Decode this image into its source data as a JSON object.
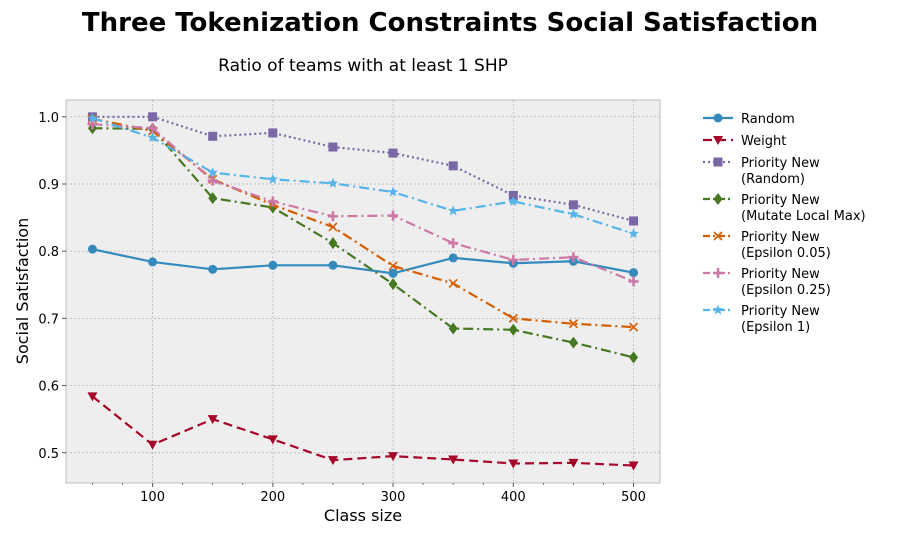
{
  "chart_data": {
    "type": "line",
    "title": "Three Tokenization Constraints Social Satisfaction",
    "subtitle": "Ratio of teams with at least 1 SHP",
    "xlabel": "Class size",
    "ylabel": "Social Satisfaction",
    "xlim": [
      28,
      522
    ],
    "ylim": [
      0.455,
      1.025
    ],
    "xticks": [
      100,
      200,
      300,
      400,
      500
    ],
    "yticks": [
      0.5,
      0.6,
      0.7,
      0.8,
      0.9,
      1.0
    ],
    "ytick_labels": [
      "0.5",
      "0.6",
      "0.7",
      "0.8",
      "0.9",
      "1.0"
    ],
    "grid": true,
    "legend_position": "outside right",
    "x": [
      50,
      100,
      150,
      200,
      250,
      300,
      350,
      400,
      450,
      500
    ],
    "series": [
      {
        "name": "Random",
        "color": "#348abd",
        "dash": "",
        "marker": "circle",
        "values": [
          0.803,
          0.784,
          0.773,
          0.779,
          0.779,
          0.767,
          0.79,
          0.782,
          0.785,
          0.768
        ]
      },
      {
        "name": "Weight",
        "color": "#a60628",
        "dash": "9 5",
        "marker": "triangle-down",
        "values": [
          0.584,
          0.512,
          0.55,
          0.52,
          0.489,
          0.495,
          0.49,
          0.484,
          0.485,
          0.481
        ]
      },
      {
        "name": "Priority New\n(Random)",
        "color": "#7a68a6",
        "dash": "2 3",
        "marker": "square",
        "values": [
          1.0,
          1.0,
          0.971,
          0.976,
          0.955,
          0.946,
          0.927,
          0.883,
          0.869,
          0.845
        ]
      },
      {
        "name": "Priority New\n(Mutate Local Max)",
        "color": "#467821",
        "dash": "10 4 2 4",
        "marker": "diamond",
        "values": [
          0.983,
          0.982,
          0.879,
          0.865,
          0.812,
          0.751,
          0.685,
          0.683,
          0.664,
          0.642
        ]
      },
      {
        "name": "Priority New\n(Epsilon 0.05)",
        "color": "#d55e00",
        "dash": "10 4 2 4",
        "marker": "x",
        "values": [
          0.997,
          0.979,
          0.907,
          0.869,
          0.836,
          0.778,
          0.752,
          0.7,
          0.692,
          0.687
        ]
      },
      {
        "name": "Priority New\n(Epsilon 0.25)",
        "color": "#cc79a7",
        "dash": "10 4 2 4",
        "marker": "plus",
        "values": [
          0.989,
          0.983,
          0.905,
          0.874,
          0.852,
          0.853,
          0.812,
          0.787,
          0.791,
          0.755
        ]
      },
      {
        "name": "Priority New\n(Epsilon 1)",
        "color": "#56b4e9",
        "dash": "10 4 2 4",
        "marker": "star",
        "values": [
          0.998,
          0.969,
          0.917,
          0.907,
          0.901,
          0.888,
          0.86,
          0.874,
          0.855,
          0.826
        ]
      }
    ]
  }
}
